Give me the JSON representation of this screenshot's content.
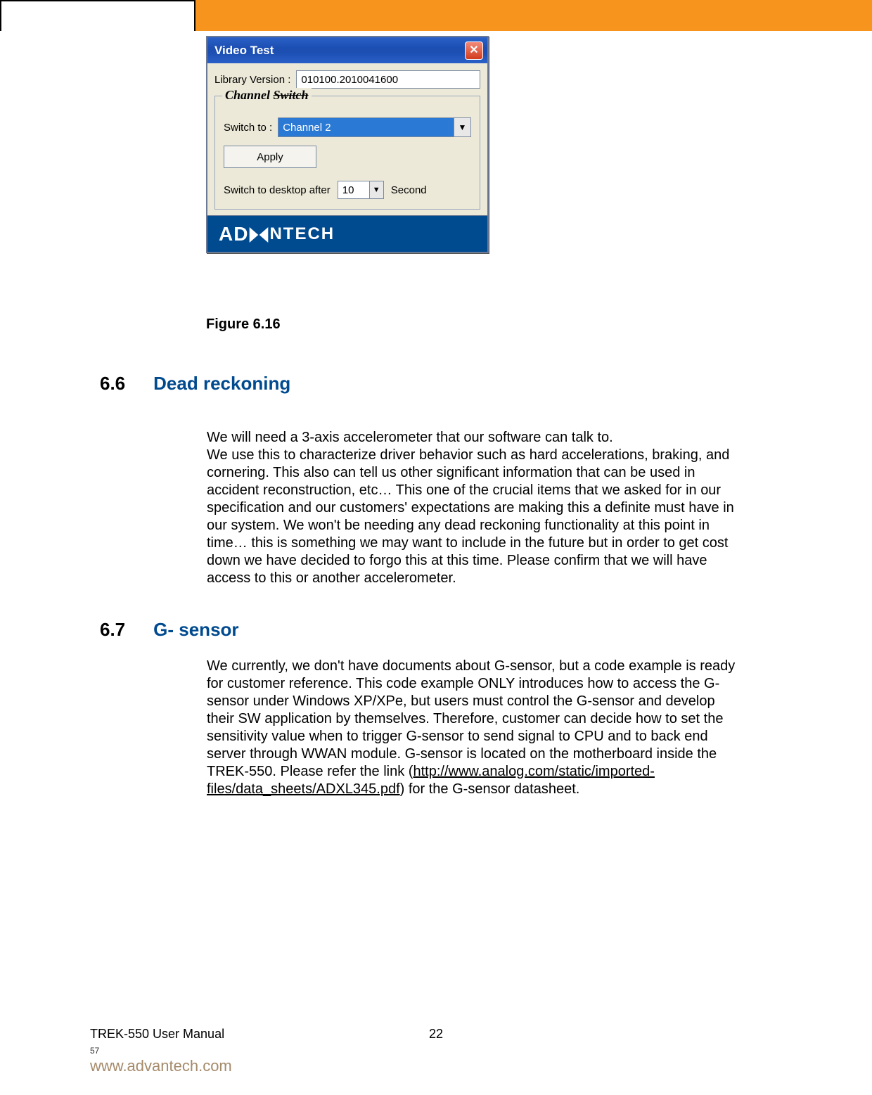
{
  "bar": {
    "orange": "#f7941d"
  },
  "dialog": {
    "title": "Video Test",
    "close_glyph": "✕",
    "library_label": "Library Version :",
    "library_value": "010100.2010041600",
    "group_legend_pre": "Channel ",
    "group_legend_strike": "Switch",
    "switch_to_label": "Switch to :",
    "switch_to_value": "Channel 2",
    "apply_label": "Apply",
    "switch_after_label": "Switch to desktop after",
    "switch_after_value": "10",
    "second_label": "Second",
    "brand_a": "AD",
    "brand_rest": "NTECH"
  },
  "figure": {
    "caption": "Figure 6.16"
  },
  "sec66": {
    "num": "6.6",
    "title": "Dead reckoning",
    "body": "We will need a 3-axis accelerometer that our software can talk to.\nWe use this to characterize driver behavior such as hard accelerations, braking, and cornering. This also can tell us other significant information that can be used in accident reconstruction, etc… This one of the crucial items that we asked for in our specification and our customers' expectations are making this a definite must have in our system. We won't be needing any dead reckoning functionality at this point in time… this is something we may want to include in the future but in order to get cost down we have decided to forgo this at this time.   Please confirm that we will have access to this or another accelerometer."
  },
  "sec67": {
    "num": "6.7",
    "title": "G- sensor",
    "body_pre": "We currently, we don't have documents about G-sensor, but a code example is ready for customer reference. This code example ONLY introduces how to access the G-sensor under Windows XP/XPe, but users must control the G-sensor and develop their SW application by themselves. Therefore, customer can decide how to set the sensitivity value when to trigger G-sensor to send signal to CPU and to back end server through WWAN module. G-sensor is located on the motherboard inside the TREK-550. Please refer the link (",
    "body_link": "http://www.analog.com/static/imported-files/data_sheets/ADXL345.pdf",
    "body_post": ") for the G-sensor datasheet."
  },
  "footer": {
    "manual": "TREK-550 User Manual",
    "page": "22",
    "small": "57",
    "url": "www.advantech.com"
  }
}
